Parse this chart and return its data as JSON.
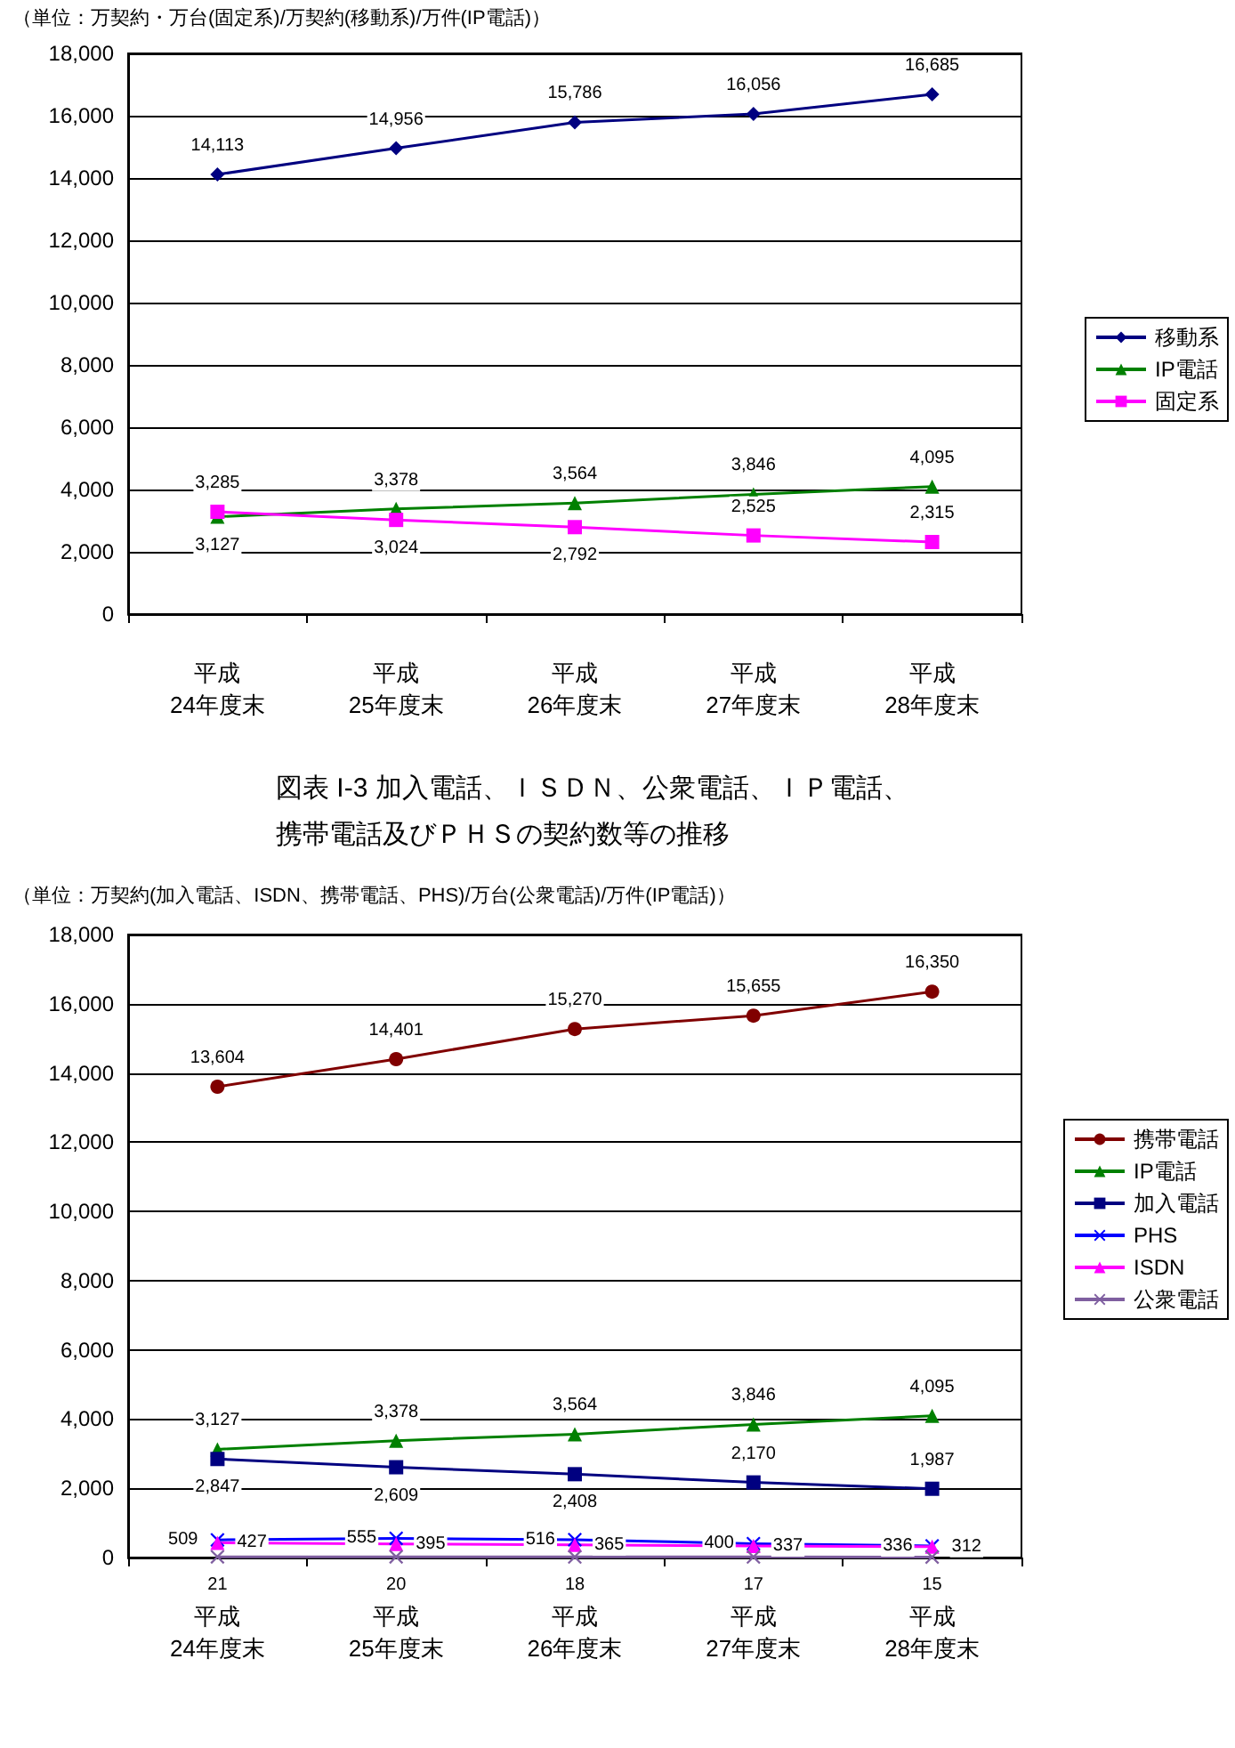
{
  "chart_data": [
    {
      "type": "line",
      "subtitle": "（単位：万契約・万台(固定系)/万契約(移動系)/万件(IP電話)）",
      "categories": [
        "平成\n24年度末",
        "平成\n25年度末",
        "平成\n26年度末",
        "平成\n27年度末",
        "平成\n28年度末"
      ],
      "series": [
        {
          "name": "移動系",
          "color": "#000080",
          "marker": "diamond",
          "values": [
            14113,
            14956,
            15786,
            16056,
            16685
          ],
          "value_labels": [
            "14,113",
            "14,956",
            "15,786",
            "16,056",
            "16,685"
          ]
        },
        {
          "name": "IP電話",
          "color": "#008000",
          "marker": "triangle",
          "values": [
            3127,
            3378,
            3564,
            3846,
            4095
          ],
          "value_labels": [
            "3,127",
            "3,378",
            "3,564",
            "3,846",
            "4,095"
          ]
        },
        {
          "name": "固定系",
          "color": "#ff00ff",
          "marker": "square",
          "values": [
            3285,
            3024,
            2792,
            2525,
            2315
          ],
          "value_labels": [
            "3,285",
            "3,024",
            "2,792",
            "2,525",
            "2,315"
          ]
        }
      ],
      "ylim": [
        0,
        18000
      ],
      "yticks": [
        0,
        {
          "value": 2000,
          "label": "2,000"
        },
        {
          "value": 4000,
          "label": "4,000"
        },
        {
          "value": 6000,
          "label": "6,000"
        },
        {
          "value": 8000,
          "label": "8,000"
        },
        {
          "value": 10000,
          "label": "10,000"
        },
        {
          "value": 12000,
          "label": "12,000"
        },
        {
          "value": 14000,
          "label": "14,000"
        },
        {
          "value": 16000,
          "label": "16,000"
        },
        {
          "value": 18000,
          "label": "18,000"
        }
      ],
      "grid": "y",
      "legend": "right"
    },
    {
      "type": "line",
      "title": "図表 I-3 加入電話、ＩＳＤＮ、公衆電話、ＩＰ電話、携帯電話及びＰＨＳの契約数等の推移",
      "subtitle": "（単位：万契約(加入電話、ISDN、携帯電話、PHS)/万台(公衆電話)/万件(IP電話)）",
      "categories": [
        "平成\n24年度末",
        "平成\n25年度末",
        "平成\n26年度末",
        "平成\n27年度末",
        "平成\n28年度末"
      ],
      "series": [
        {
          "name": "携帯電話",
          "color": "#800000",
          "marker": "circle",
          "values": [
            13604,
            14401,
            15270,
            15655,
            16350
          ],
          "value_labels": [
            "13,604",
            "14,401",
            "15,270",
            "15,655",
            "16,350"
          ]
        },
        {
          "name": "IP電話",
          "color": "#008000",
          "marker": "triangle",
          "values": [
            3127,
            3378,
            3564,
            3846,
            4095
          ],
          "value_labels": [
            "3,127",
            "3,378",
            "3,564",
            "3,846",
            "4,095"
          ]
        },
        {
          "name": "加入電話",
          "color": "#000080",
          "marker": "square",
          "values": [
            2847,
            2609,
            2408,
            2170,
            1987
          ],
          "value_labels": [
            "2,847",
            "2,609",
            "2,408",
            "2,170",
            "1,987"
          ]
        },
        {
          "name": "PHS",
          "color": "#0000ff",
          "marker": "cross",
          "values": [
            509,
            555,
            516,
            400,
            336
          ],
          "value_labels": [
            "509",
            "555",
            "516",
            "400",
            "336"
          ]
        },
        {
          "name": "ISDN",
          "color": "#ff00ff",
          "marker": "triangle",
          "values": [
            427,
            395,
            365,
            337,
            312
          ],
          "value_labels": [
            "427",
            "395",
            "365",
            "337",
            "312"
          ]
        },
        {
          "name": "公衆電話",
          "color": "#7f5fa0",
          "marker": "cross",
          "values": [
            21,
            20,
            18,
            17,
            15
          ],
          "value_labels": [
            "21",
            "20",
            "18",
            "17",
            "15"
          ]
        }
      ],
      "ylim": [
        0,
        18000
      ],
      "yticks": [
        0,
        {
          "value": 2000,
          "label": "2,000"
        },
        {
          "value": 4000,
          "label": "4,000"
        },
        {
          "value": 6000,
          "label": "6,000"
        },
        {
          "value": 8000,
          "label": "8,000"
        },
        {
          "value": 10000,
          "label": "10,000"
        },
        {
          "value": 12000,
          "label": "12,000"
        },
        {
          "value": 14000,
          "label": "14,000"
        },
        {
          "value": 16000,
          "label": "16,000"
        },
        {
          "value": 18000,
          "label": "18,000"
        }
      ],
      "grid": "y",
      "legend": "right"
    }
  ]
}
